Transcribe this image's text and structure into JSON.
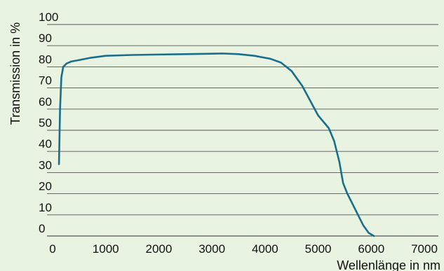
{
  "chart_data": {
    "type": "line",
    "title": "",
    "xlabel": "Wellenlänge in nm",
    "ylabel": "Transmission in %",
    "xlim": [
      0,
      7000
    ],
    "ylim": [
      0,
      100
    ],
    "x_ticks": [
      0,
      1000,
      2000,
      3000,
      4000,
      5000,
      6000,
      7000
    ],
    "y_ticks": [
      0,
      10,
      20,
      30,
      40,
      50,
      60,
      70,
      80,
      90,
      100
    ],
    "grid": "horizontal",
    "legend": "none",
    "series": [
      {
        "color": "#1a6e8c",
        "points": [
          [
            120,
            34
          ],
          [
            140,
            60
          ],
          [
            165,
            75
          ],
          [
            200,
            80
          ],
          [
            260,
            81.5
          ],
          [
            350,
            82.5
          ],
          [
            500,
            83.2
          ],
          [
            700,
            84.2
          ],
          [
            1000,
            85.2
          ],
          [
            1500,
            85.6
          ],
          [
            2000,
            85.8
          ],
          [
            2500,
            86.0
          ],
          [
            3000,
            86.2
          ],
          [
            3200,
            86.3
          ],
          [
            3500,
            86.0
          ],
          [
            3800,
            85.2
          ],
          [
            4100,
            83.8
          ],
          [
            4300,
            82.0
          ],
          [
            4500,
            78.0
          ],
          [
            4700,
            71.0
          ],
          [
            4850,
            64.0
          ],
          [
            5000,
            57.0
          ],
          [
            5200,
            51.0
          ],
          [
            5300,
            45.0
          ],
          [
            5400,
            35.0
          ],
          [
            5470,
            25.0
          ],
          [
            5550,
            20.0
          ],
          [
            5650,
            15.0
          ],
          [
            5750,
            10.0
          ],
          [
            5850,
            5.0
          ],
          [
            5950,
            1.5
          ],
          [
            6050,
            0
          ]
        ]
      }
    ]
  }
}
